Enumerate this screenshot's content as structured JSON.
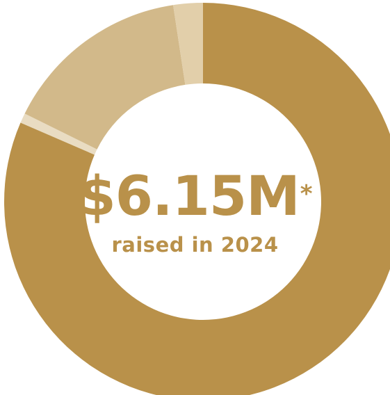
{
  "chart_data": {
    "type": "pie",
    "title": "",
    "center_value": "$6.15M",
    "center_marker": "*",
    "center_caption": "raised in 2024",
    "slices": [
      {
        "value": 81.5,
        "color": "#b9914a"
      },
      {
        "value": 0.8,
        "color": "#e9dcc2"
      },
      {
        "value": 15.3,
        "color": "#d2b98a"
      },
      {
        "value": 2.4,
        "color": "#e2cfaa"
      }
    ]
  },
  "colors": {
    "accent": "#b9914a",
    "background": "#ffffff"
  }
}
